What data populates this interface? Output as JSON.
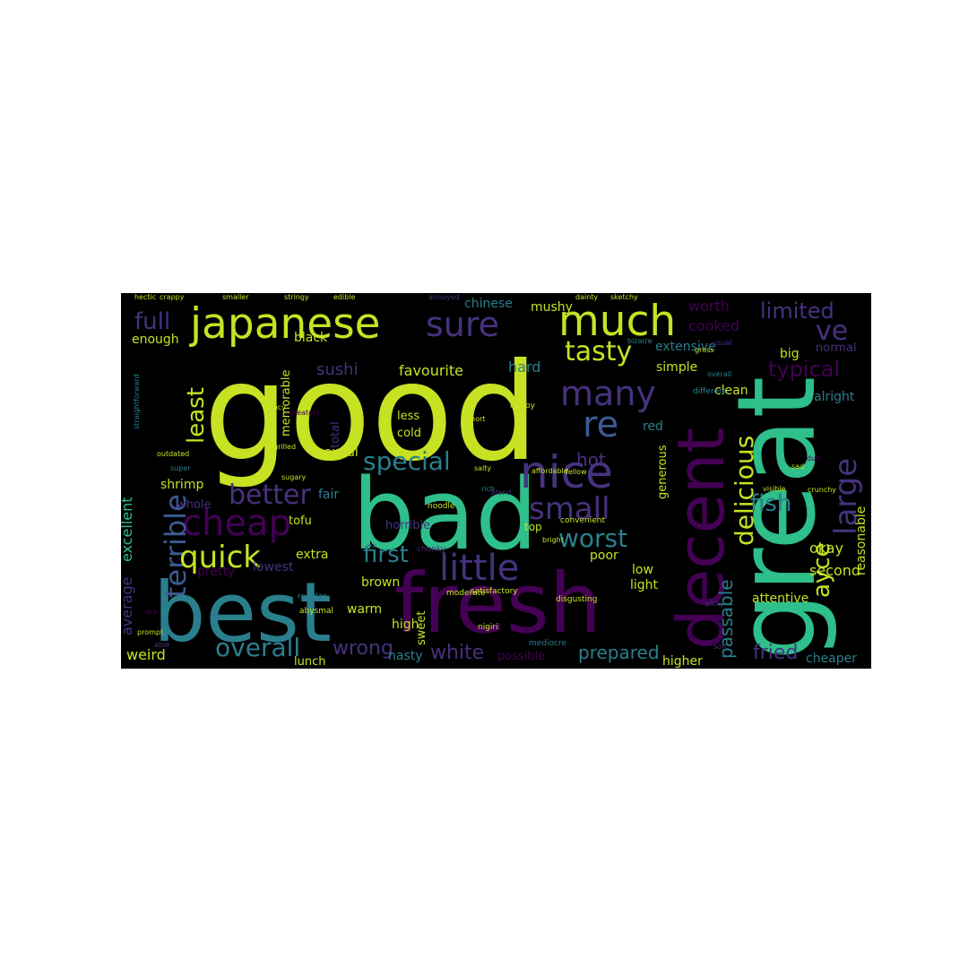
{
  "chart_data": {
    "type": "wordcloud",
    "title": "",
    "background": "#000000",
    "palette": {
      "yellow": "#c6e223",
      "green": "#2ebf8a",
      "teal": "#2a7f8e",
      "blue": "#3b5b94",
      "indigo": "#46327e",
      "purple": "#440154",
      "lime": "#8fd744"
    },
    "words": [
      {
        "text": "good",
        "color": "yellow"
      },
      {
        "text": "great",
        "color": "green"
      },
      {
        "text": "bad",
        "color": "green"
      },
      {
        "text": "fresh",
        "color": "purple"
      },
      {
        "text": "best",
        "color": "teal"
      },
      {
        "text": "decent",
        "color": "purple"
      },
      {
        "text": "japanese",
        "color": "yellow"
      },
      {
        "text": "much",
        "color": "yellow"
      },
      {
        "text": "sure",
        "color": "indigo"
      },
      {
        "text": "nice",
        "color": "indigo"
      },
      {
        "text": "cheap",
        "color": "purple"
      },
      {
        "text": "terrible",
        "color": "blue"
      },
      {
        "text": "many",
        "color": "indigo"
      },
      {
        "text": "little",
        "color": "indigo"
      },
      {
        "text": "small",
        "color": "indigo"
      },
      {
        "text": "quick",
        "color": "yellow"
      },
      {
        "text": "overall",
        "color": "teal"
      },
      {
        "text": "delicious",
        "color": "yellow"
      },
      {
        "text": "large",
        "color": "indigo"
      },
      {
        "text": "re",
        "color": "blue"
      },
      {
        "text": "tasty",
        "color": "yellow"
      },
      {
        "text": "better",
        "color": "indigo"
      },
      {
        "text": "special",
        "color": "teal"
      },
      {
        "text": "worst",
        "color": "teal"
      },
      {
        "text": "first",
        "color": "teal"
      },
      {
        "text": "fish",
        "color": "teal"
      },
      {
        "text": "limited",
        "color": "indigo"
      },
      {
        "text": "least",
        "color": "yellow"
      },
      {
        "text": "full",
        "color": "indigo"
      },
      {
        "text": "ve",
        "color": "indigo"
      },
      {
        "text": "typical",
        "color": "purple"
      },
      {
        "text": "ayce",
        "color": "yellow"
      },
      {
        "text": "fried",
        "color": "indigo"
      },
      {
        "text": "hot",
        "color": "indigo"
      },
      {
        "text": "sushi",
        "color": "indigo"
      },
      {
        "text": "wrong",
        "color": "indigo"
      },
      {
        "text": "white",
        "color": "indigo"
      },
      {
        "text": "passable",
        "color": "teal"
      },
      {
        "text": "prepared",
        "color": "teal"
      },
      {
        "text": "second",
        "color": "yellow"
      },
      {
        "text": "okay",
        "color": "yellow"
      },
      {
        "text": "worth",
        "color": "purple"
      },
      {
        "text": "reasonable",
        "color": "yellow"
      },
      {
        "text": "excellent",
        "color": "green"
      },
      {
        "text": "average",
        "color": "indigo"
      },
      {
        "text": "favourite",
        "color": "yellow"
      },
      {
        "text": "hard",
        "color": "teal"
      },
      {
        "text": "cooked",
        "color": "purple"
      },
      {
        "text": "extensive",
        "color": "teal"
      },
      {
        "text": "simple",
        "color": "yellow"
      },
      {
        "text": "clean",
        "color": "yellow"
      },
      {
        "text": "alright",
        "color": "teal"
      },
      {
        "text": "attentive",
        "color": "yellow"
      },
      {
        "text": "generous",
        "color": "yellow"
      },
      {
        "text": "red",
        "color": "teal"
      },
      {
        "text": "poor",
        "color": "yellow"
      },
      {
        "text": "low",
        "color": "yellow"
      },
      {
        "text": "light",
        "color": "yellow"
      },
      {
        "text": "extra",
        "color": "yellow"
      },
      {
        "text": "brown",
        "color": "yellow"
      },
      {
        "text": "warm",
        "color": "yellow"
      },
      {
        "text": "high",
        "color": "yellow"
      },
      {
        "text": "weird",
        "color": "yellow"
      },
      {
        "text": "lunch",
        "color": "yellow"
      },
      {
        "text": "nasty",
        "color": "teal"
      },
      {
        "text": "possible",
        "color": "purple"
      },
      {
        "text": "higher",
        "color": "yellow"
      },
      {
        "text": "cheaper",
        "color": "teal"
      },
      {
        "text": "big",
        "color": "yellow"
      },
      {
        "text": "normal",
        "color": "indigo"
      },
      {
        "text": "awful",
        "color": "yellow"
      },
      {
        "text": "fair",
        "color": "teal"
      },
      {
        "text": "tofu",
        "color": "yellow"
      },
      {
        "text": "shrimp",
        "color": "yellow"
      },
      {
        "text": "whole",
        "color": "indigo"
      },
      {
        "text": "pretty",
        "color": "purple"
      },
      {
        "text": "lowest",
        "color": "indigo"
      },
      {
        "text": "total",
        "color": "indigo"
      },
      {
        "text": "memorable",
        "color": "yellow"
      },
      {
        "text": "enough",
        "color": "yellow"
      },
      {
        "text": "black",
        "color": "yellow"
      },
      {
        "text": "chinese",
        "color": "teal"
      },
      {
        "text": "mushy",
        "color": "yellow"
      },
      {
        "text": "horrible",
        "color": "indigo"
      },
      {
        "text": "sweet",
        "color": "yellow"
      },
      {
        "text": "less",
        "color": "yellow"
      },
      {
        "text": "cold",
        "color": "yellow"
      },
      {
        "text": "top",
        "color": "yellow"
      },
      {
        "text": "crappy",
        "color": "yellow"
      },
      {
        "text": "hectic",
        "color": "yellow"
      },
      {
        "text": "smaller",
        "color": "yellow"
      },
      {
        "text": "stringy",
        "color": "yellow"
      },
      {
        "text": "edible",
        "color": "yellow"
      },
      {
        "text": "annoyed",
        "color": "indigo"
      },
      {
        "text": "dainty",
        "color": "yellow"
      },
      {
        "text": "sketchy",
        "color": "yellow"
      },
      {
        "text": "straightforward",
        "color": "teal"
      },
      {
        "text": "outdated",
        "color": "yellow"
      },
      {
        "text": "super",
        "color": "teal"
      },
      {
        "text": "regular",
        "color": "teal"
      },
      {
        "text": "satisfactory",
        "color": "yellow"
      },
      {
        "text": "disgusting",
        "color": "yellow"
      },
      {
        "text": "convenient",
        "color": "yellow"
      },
      {
        "text": "different",
        "color": "teal"
      },
      {
        "text": "overall",
        "color": "teal"
      },
      {
        "text": "happy",
        "color": "yellow"
      },
      {
        "text": "sugary",
        "color": "yellow"
      },
      {
        "text": "sad",
        "color": "yellow"
      },
      {
        "text": "dull",
        "color": "purple"
      },
      {
        "text": "gross",
        "color": "yellow"
      },
      {
        "text": "fancy",
        "color": "yellow"
      },
      {
        "text": "greatest",
        "color": "purple"
      },
      {
        "text": "noodle",
        "color": "yellow"
      },
      {
        "text": "short",
        "color": "yellow"
      },
      {
        "text": "bright",
        "color": "yellow"
      },
      {
        "text": "bland",
        "color": "indigo"
      },
      {
        "text": "crunchy",
        "color": "yellow"
      },
      {
        "text": "chunky",
        "color": "indigo"
      },
      {
        "text": "moderate",
        "color": "yellow"
      },
      {
        "text": "able",
        "color": "indigo"
      },
      {
        "text": "prompt",
        "color": "yellow"
      },
      {
        "text": "salty",
        "color": "yellow"
      },
      {
        "text": "picky",
        "color": "indigo"
      },
      {
        "text": "soft",
        "color": "indigo"
      },
      {
        "text": "usual",
        "color": "indigo"
      },
      {
        "text": "visible",
        "color": "yellow"
      },
      {
        "text": "bizarre",
        "color": "teal"
      },
      {
        "text": "grilled",
        "color": "yellow"
      },
      {
        "text": "fellow",
        "color": "yellow"
      },
      {
        "text": "affordable",
        "color": "yellow"
      },
      {
        "text": "rich",
        "color": "teal"
      },
      {
        "text": "dry",
        "color": "purple"
      },
      {
        "text": "nigiri",
        "color": "yellow"
      },
      {
        "text": "mediocre",
        "color": "teal"
      },
      {
        "text": "abysmal",
        "color": "yellow"
      }
    ]
  }
}
